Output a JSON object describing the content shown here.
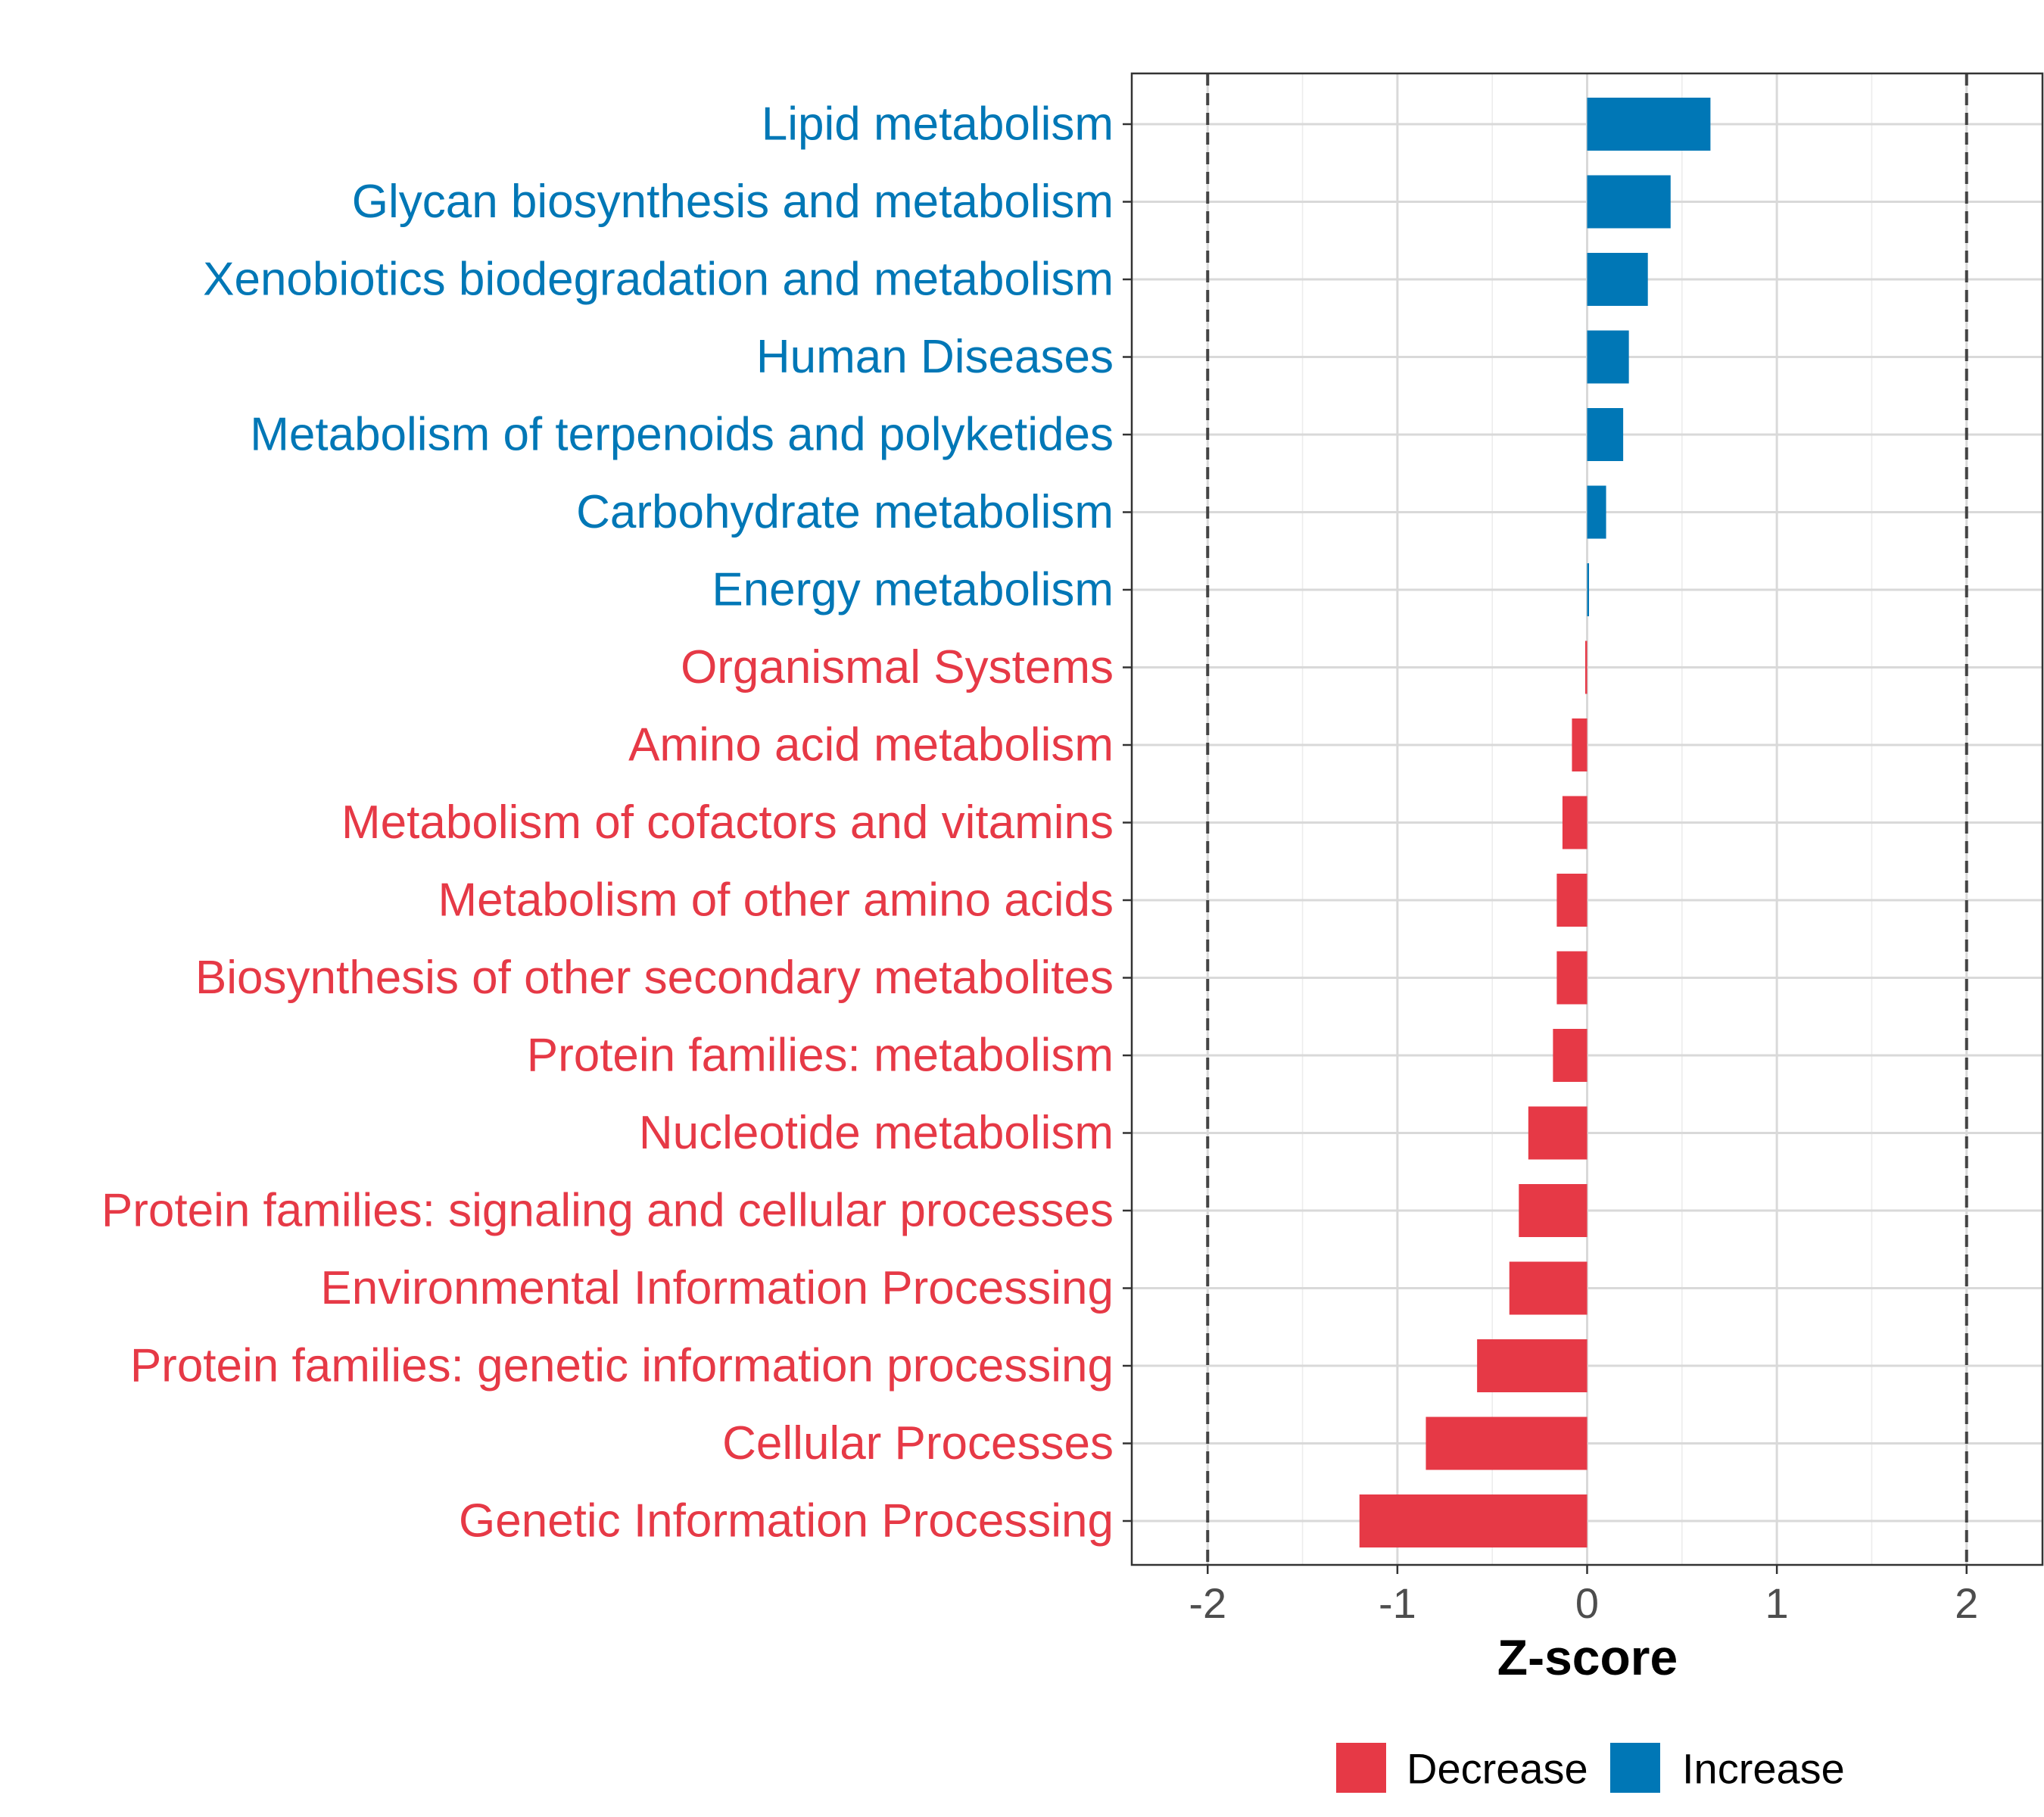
{
  "chart_data": {
    "type": "bar",
    "orientation": "horizontal",
    "xlabel": "Z-score",
    "xlim": [
      -2.4,
      2.4
    ],
    "xticks": [
      -2,
      -1,
      0,
      1,
      2
    ],
    "xtick_labels": [
      "-2",
      "-1",
      "0",
      "1",
      "2"
    ],
    "reference_lines": [
      -2,
      2
    ],
    "grid": true,
    "legend_position": "bottom",
    "colors": {
      "Decrease": "#e63946",
      "Increase": "#0077b6"
    },
    "categories": [
      "Lipid metabolism",
      "Glycan biosynthesis and metabolism",
      "Xenobiotics biodegradation and metabolism",
      "Human Diseases",
      "Metabolism of terpenoids and polyketides",
      "Carbohydrate metabolism",
      "Energy metabolism",
      "Organismal Systems",
      "Amino acid metabolism",
      "Metabolism of cofactors and vitamins",
      "Metabolism of other amino acids",
      "Biosynthesis of other secondary metabolites",
      "Protein families: metabolism",
      "Nucleotide metabolism",
      "Protein families: signaling and cellular processes",
      "Environmental Information Processing",
      "Protein families: genetic information processing",
      "Cellular Processes",
      "Genetic Information Processing"
    ],
    "values": [
      0.65,
      0.44,
      0.32,
      0.22,
      0.19,
      0.1,
      0.01,
      -0.01,
      -0.08,
      -0.13,
      -0.16,
      -0.16,
      -0.18,
      -0.31,
      -0.36,
      -0.41,
      -0.58,
      -0.85,
      -1.2
    ],
    "groups": [
      "Increase",
      "Increase",
      "Increase",
      "Increase",
      "Increase",
      "Increase",
      "Increase",
      "Decrease",
      "Decrease",
      "Decrease",
      "Decrease",
      "Decrease",
      "Decrease",
      "Decrease",
      "Decrease",
      "Decrease",
      "Decrease",
      "Decrease",
      "Decrease"
    ],
    "legend": [
      "Decrease",
      "Increase"
    ]
  }
}
